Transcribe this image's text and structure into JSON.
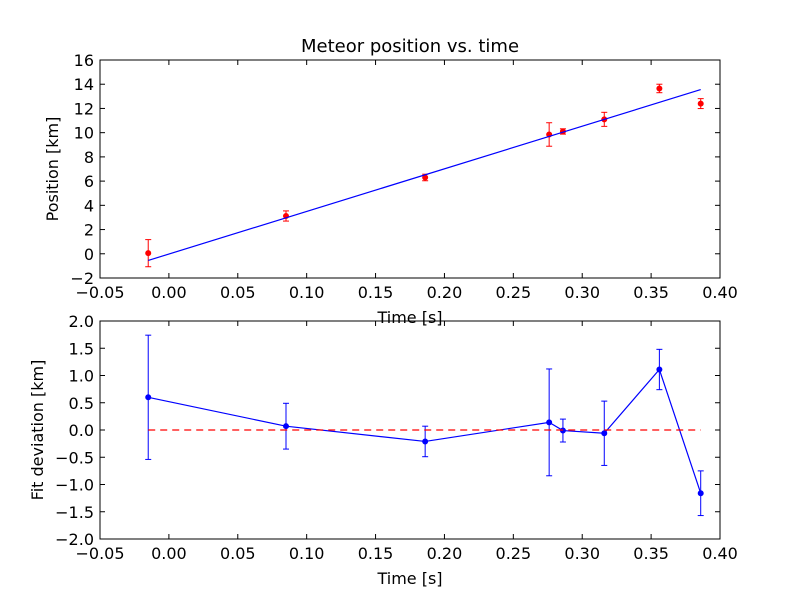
{
  "chart_data": [
    {
      "type": "scatter",
      "title": "Meteor position vs. time",
      "xlabel": "Time [s]",
      "ylabel": "Position [km]",
      "xlim": [
        -0.05,
        0.4
      ],
      "ylim": [
        -2,
        16
      ],
      "xticks": [
        "−0.05",
        "0.00",
        "0.05",
        "0.10",
        "0.15",
        "0.20",
        "0.25",
        "0.30",
        "0.35",
        "0.40"
      ],
      "yticks": [
        "−2",
        "0",
        "2",
        "4",
        "6",
        "8",
        "10",
        "12",
        "14",
        "16"
      ],
      "grid": false,
      "colors": {
        "points": "#ff0000",
        "fit": "#0000ff"
      },
      "series": [
        {
          "kind": "errorbar-points",
          "x": [
            -0.015,
            0.085,
            0.186,
            0.276,
            0.286,
            0.316,
            0.356,
            0.386
          ],
          "y": [
            0.05,
            3.12,
            6.3,
            9.85,
            10.1,
            11.1,
            13.65,
            12.4
          ],
          "yerr": [
            1.12,
            0.42,
            0.27,
            0.97,
            0.22,
            0.58,
            0.35,
            0.41
          ]
        },
        {
          "kind": "fit-line",
          "x": [
            -0.015,
            0.386
          ],
          "y": [
            -0.55,
            13.56
          ]
        }
      ]
    },
    {
      "type": "line",
      "title": "",
      "xlabel": "Time [s]",
      "ylabel": "Fit deviation [km]",
      "xlim": [
        -0.05,
        0.4
      ],
      "ylim": [
        -2.0,
        2.0
      ],
      "xticks": [
        "−0.05",
        "0.00",
        "0.05",
        "0.10",
        "0.15",
        "0.20",
        "0.25",
        "0.30",
        "0.35",
        "0.40"
      ],
      "yticks": [
        "−2.0",
        "−1.5",
        "−1.0",
        "−0.5",
        "0.0",
        "0.5",
        "1.0",
        "1.5",
        "2.0"
      ],
      "grid": false,
      "colors": {
        "series": "#0000ff",
        "zero": "#ff0000"
      },
      "series": [
        {
          "kind": "errorbar-line",
          "x": [
            -0.015,
            0.085,
            0.186,
            0.276,
            0.286,
            0.316,
            0.356,
            0.386
          ],
          "y": [
            0.6,
            0.07,
            -0.21,
            0.14,
            -0.01,
            -0.06,
            1.11,
            -1.16
          ],
          "yerr": [
            1.14,
            0.42,
            0.28,
            0.98,
            0.21,
            0.59,
            0.37,
            0.41
          ]
        },
        {
          "kind": "zero-reference",
          "x": [
            -0.015,
            0.386
          ],
          "y": [
            0,
            0
          ]
        }
      ]
    }
  ]
}
